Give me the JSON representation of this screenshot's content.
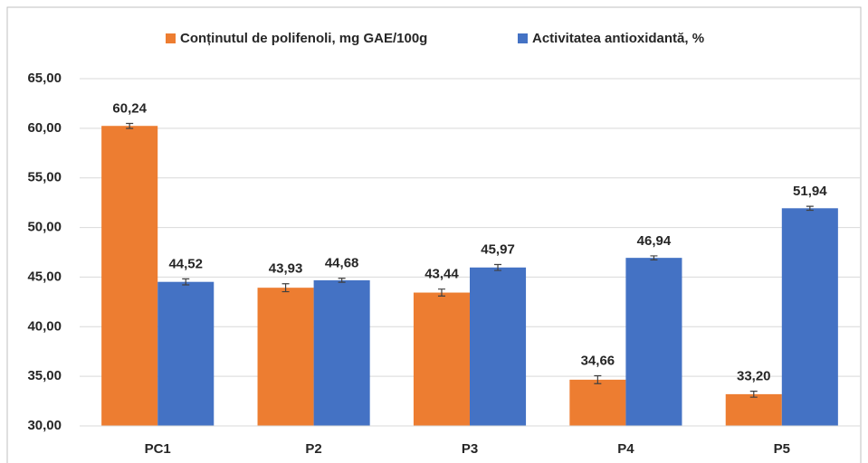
{
  "chart_data": {
    "type": "bar",
    "categories": [
      "PC1",
      "P2",
      "P3",
      "P4",
      "P5"
    ],
    "series": [
      {
        "name": "Conținutul de polifenoli, mg GAE/100g",
        "color": "#ed7d31",
        "values": [
          60.24,
          43.93,
          43.44,
          34.66,
          33.2
        ],
        "value_labels": [
          "60,24",
          "43,93",
          "43,44",
          "34,66",
          "33,20"
        ],
        "errors": [
          0.25,
          0.4,
          0.35,
          0.4,
          0.3
        ]
      },
      {
        "name": "Activitatea antioxidantă, %",
        "color": "#4472c4",
        "values": [
          44.52,
          44.68,
          45.97,
          46.94,
          51.94
        ],
        "value_labels": [
          "44,52",
          "44,68",
          "45,97",
          "46,94",
          "51,94"
        ],
        "errors": [
          0.3,
          0.2,
          0.3,
          0.2,
          0.2
        ]
      }
    ],
    "ylim": [
      30,
      65
    ],
    "yticks": [
      {
        "value": 30,
        "label": "30,00"
      },
      {
        "value": 35,
        "label": "35,00"
      },
      {
        "value": 40,
        "label": "40,00"
      },
      {
        "value": 45,
        "label": "45,00"
      },
      {
        "value": 50,
        "label": "50,00"
      },
      {
        "value": 55,
        "label": "55,00"
      },
      {
        "value": 60,
        "label": "60,00"
      },
      {
        "value": 65,
        "label": "65,00"
      }
    ],
    "grid": true,
    "legend": "top"
  }
}
